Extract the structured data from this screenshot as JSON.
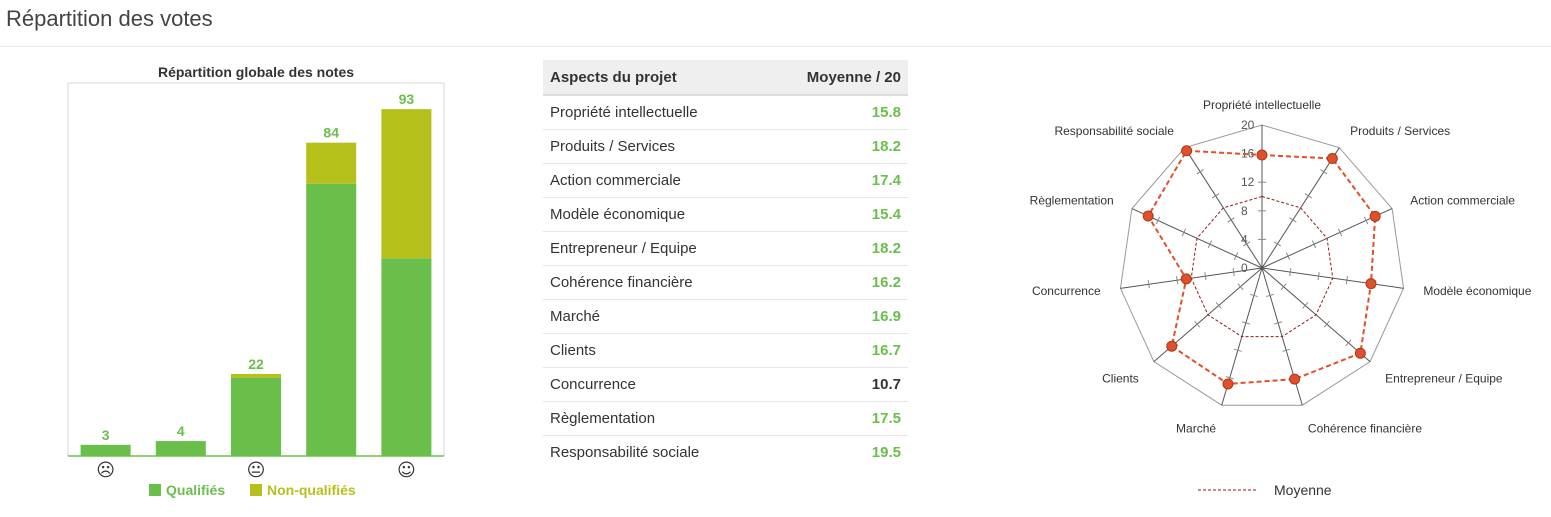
{
  "page": {
    "title": "Répartition des votes"
  },
  "table": {
    "col_aspect": "Aspects du projet",
    "col_score": "Moyenne / 20",
    "rows": [
      {
        "aspect": "Propriété intellectuelle",
        "score": "15.8"
      },
      {
        "aspect": "Produits / Services",
        "score": "18.2"
      },
      {
        "aspect": "Action commerciale",
        "score": "17.4"
      },
      {
        "aspect": "Modèle économique",
        "score": "15.4"
      },
      {
        "aspect": "Entrepreneur / Equipe",
        "score": "18.2"
      },
      {
        "aspect": "Cohérence financière",
        "score": "16.2"
      },
      {
        "aspect": "Marché",
        "score": "16.9"
      },
      {
        "aspect": "Clients",
        "score": "16.7"
      },
      {
        "aspect": "Concurrence",
        "score": "10.7"
      },
      {
        "aspect": "Règlementation",
        "score": "17.5"
      },
      {
        "aspect": "Responsabilité sociale",
        "score": "19.5"
      }
    ]
  },
  "chart_data": [
    {
      "type": "bar",
      "stacked": true,
      "title": "Répartition globale des notes",
      "categories": [
        "☹",
        "",
        "😐",
        "",
        "☺"
      ],
      "series": [
        {
          "name": "Qualifiés",
          "color": "#6abf4b",
          "values": [
            3,
            4,
            21,
            73,
            53
          ]
        },
        {
          "name": "Non-qualifiés",
          "color": "#b5c11a",
          "values": [
            0,
            0,
            1,
            11,
            40
          ]
        }
      ],
      "totals": [
        3,
        4,
        22,
        84,
        93
      ],
      "ylim": [
        0,
        100
      ],
      "legend": "bottom",
      "grid": false
    },
    {
      "type": "radar",
      "axes": [
        "Propriété intellectuelle",
        "Produits / Services",
        "Action commerciale",
        "Modèle économique",
        "Entrepreneur / Equipe",
        "Cohérence financière",
        "Marché",
        "Clients",
        "Concurrence",
        "Règlementation",
        "Responsabilité sociale"
      ],
      "ticks": [
        "0",
        "4",
        "8",
        "12",
        "16",
        "20"
      ],
      "rlim": [
        0,
        20
      ],
      "series": [
        {
          "name": "Moyenne",
          "color": "#8b1a1a",
          "values": [
            10,
            10,
            10,
            10,
            10,
            10,
            10,
            10,
            10,
            10,
            10
          ]
        },
        {
          "name": "",
          "color": "#e0502a",
          "values": [
            15.8,
            18.2,
            17.4,
            15.4,
            18.2,
            16.2,
            16.9,
            16.7,
            10.7,
            17.5,
            19.5
          ]
        }
      ],
      "legend": "bottom"
    }
  ]
}
